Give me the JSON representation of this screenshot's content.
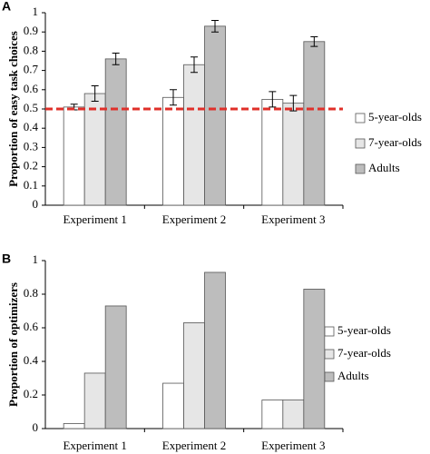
{
  "chart_data": [
    {
      "type": "bar",
      "panel": "A",
      "ylabel": "Proportion of easy task choices",
      "categories": [
        "Experiment 1",
        "Experiment 2",
        "Experiment 3"
      ],
      "series": [
        {
          "name": "5-year-olds",
          "color": "#ffffff",
          "values": [
            0.51,
            0.56,
            0.55
          ],
          "errors": [
            0.015,
            0.04,
            0.04
          ]
        },
        {
          "name": "7-year-olds",
          "color": "#e6e6e6",
          "values": [
            0.58,
            0.73,
            0.53
          ],
          "errors": [
            0.04,
            0.04,
            0.04
          ]
        },
        {
          "name": "Adults",
          "color": "#bdbdbd",
          "values": [
            0.76,
            0.93,
            0.85
          ],
          "errors": [
            0.03,
            0.03,
            0.025
          ]
        }
      ],
      "reference_line": {
        "value": 0.5,
        "color": "#e0302a"
      },
      "ylim": [
        0,
        1
      ],
      "yticks": [
        0,
        0.1,
        0.2,
        0.3,
        0.4,
        0.5,
        0.6,
        0.7,
        0.8,
        0.9,
        1
      ]
    },
    {
      "type": "bar",
      "panel": "B",
      "ylabel": "Proportion of optimizers",
      "categories": [
        "Experiment 1",
        "Experiment 2",
        "Experiment 3"
      ],
      "series": [
        {
          "name": "5-year-olds",
          "color": "#ffffff",
          "values": [
            0.03,
            0.27,
            0.17
          ]
        },
        {
          "name": "7-year-olds",
          "color": "#e6e6e6",
          "values": [
            0.33,
            0.63,
            0.17
          ]
        },
        {
          "name": "Adults",
          "color": "#bdbdbd",
          "values": [
            0.73,
            0.93,
            0.83
          ]
        }
      ],
      "ylim": [
        0,
        1
      ],
      "yticks": [
        0,
        0.2,
        0.4,
        0.6,
        0.8,
        1
      ]
    }
  ]
}
